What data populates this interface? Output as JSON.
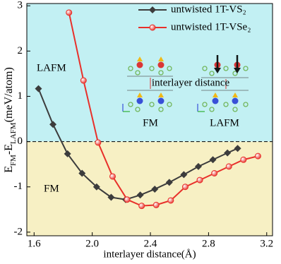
{
  "chart_data": {
    "type": "line",
    "xlabel": "interlayer distance(Å)",
    "ylabel_parts": [
      "E",
      "FM",
      "-E",
      "LAFM",
      "(meV/atom)"
    ],
    "xlim": [
      1.55,
      3.24
    ],
    "ylim": [
      -2.08,
      3.05
    ],
    "xticks": [
      1.6,
      {
        "value": 2,
        "label": "2.0"
      },
      2.4,
      2.8,
      3.2
    ],
    "yticks": [
      -2,
      -1,
      0,
      1,
      2,
      3
    ],
    "region_colors": {
      "above": "#c2f0f3",
      "below": "#f7f0c4"
    },
    "annotations": {
      "lafm_region": "LAFM",
      "fm_region": "FM",
      "inset_distance": "interlayer distance",
      "inset_fm": "FM",
      "inset_lafm": "LAFM"
    },
    "series": [
      {
        "name": "untwisted 1T-VS₂",
        "color": "#3c3c3c",
        "marker": "diamond",
        "x": [
          1.63,
          1.73,
          1.83,
          1.93,
          2.03,
          2.13,
          2.23,
          2.33,
          2.43,
          2.53,
          2.63,
          2.73,
          2.83,
          2.93,
          3.0
        ],
        "values": [
          1.17,
          0.38,
          -0.27,
          -0.7,
          -1.0,
          -1.23,
          -1.28,
          -1.18,
          -1.05,
          -0.9,
          -0.73,
          -0.55,
          -0.4,
          -0.25,
          -0.15
        ]
      },
      {
        "name": "untwisted 1T-VSe₂",
        "color": "#e8302a",
        "marker": "circle",
        "x": [
          1.84,
          1.94,
          2.04,
          2.14,
          2.24,
          2.34,
          2.44,
          2.54,
          2.64,
          2.74,
          2.84,
          2.94,
          3.04,
          3.14
        ],
        "values": [
          2.85,
          1.35,
          -0.02,
          -0.77,
          -1.28,
          -1.42,
          -1.4,
          -1.3,
          -1.0,
          -0.85,
          -0.7,
          -0.55,
          -0.4,
          -0.32
        ]
      }
    ]
  }
}
